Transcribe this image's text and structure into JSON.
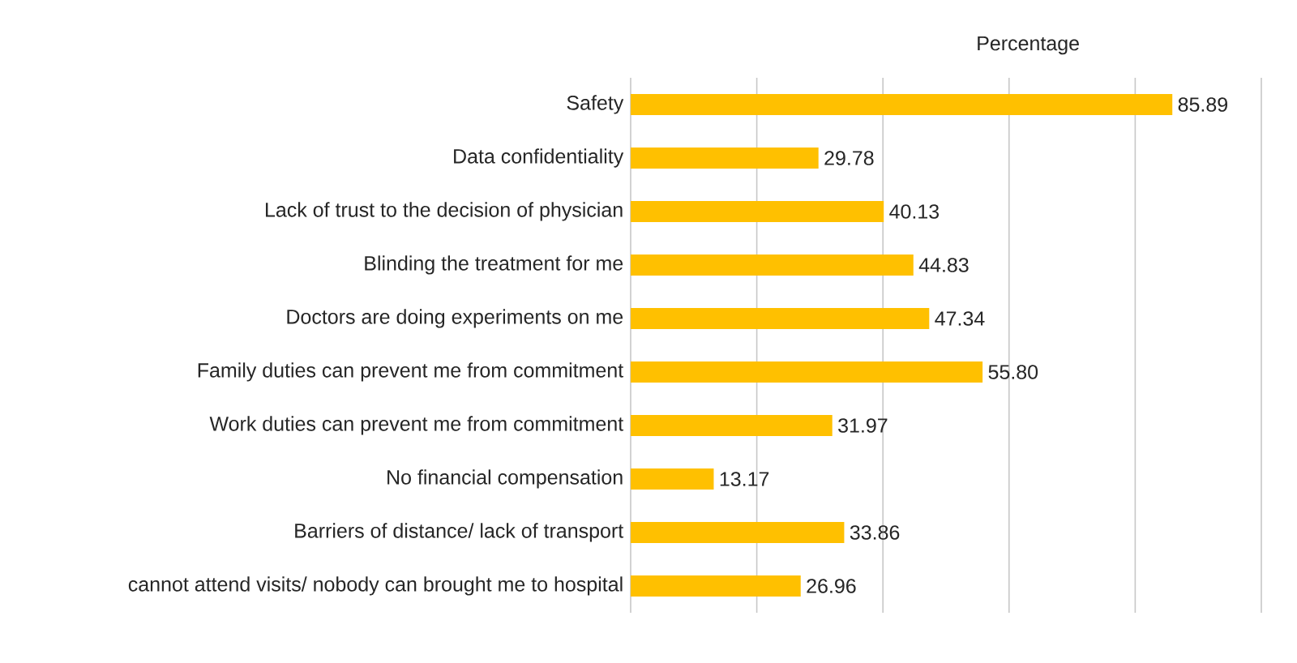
{
  "chart_data": {
    "type": "bar",
    "orientation": "horizontal",
    "title": "Percentage",
    "categories": [
      "Safety",
      "Data confidentiality",
      "Lack of trust to the decision of physician",
      "Blinding the treatment for me",
      "Doctors are doing experiments on me",
      "Family duties can prevent me from commitment",
      "Work duties can prevent me from commitment",
      "No financial compensation",
      "Barriers of distance/ lack of transport",
      "cannot attend visits/ nobody can brought me to hospital"
    ],
    "values": [
      85.89,
      29.78,
      40.13,
      44.83,
      47.34,
      55.8,
      31.97,
      13.17,
      33.86,
      26.96
    ],
    "value_labels": [
      "85.89",
      "29.78",
      "40.13",
      "44.83",
      "47.34",
      "55.80",
      "31.97",
      "13.17",
      "33.86",
      "26.96"
    ],
    "color": "#ffc000",
    "xlim": [
      0,
      100
    ],
    "xticks": [
      {
        "value": 0,
        "label": null
      },
      {
        "value": 20,
        "label": null
      },
      {
        "value": 40,
        "label": null
      },
      {
        "value": 60,
        "label": null
      },
      {
        "value": 80,
        "label": null
      },
      {
        "value": 100,
        "label": null
      }
    ],
    "grid": "x",
    "tick_labels": "y"
  }
}
